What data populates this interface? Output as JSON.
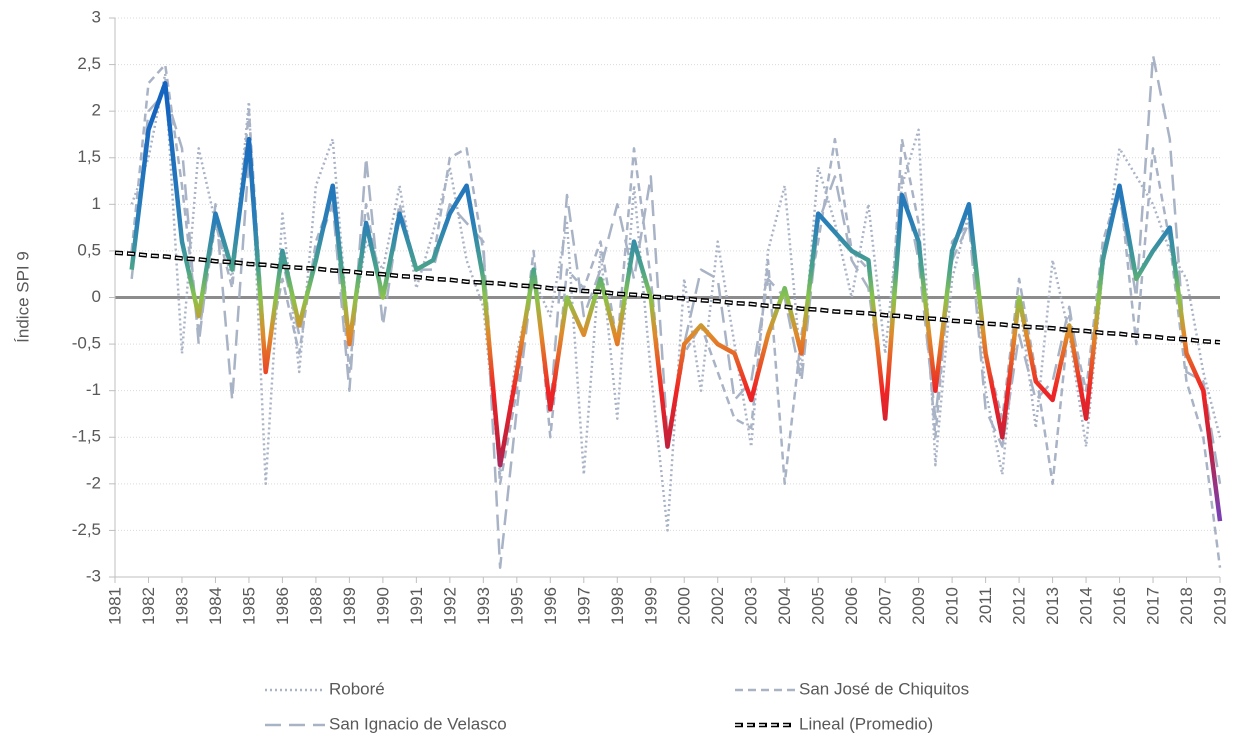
{
  "chart_data": {
    "type": "line",
    "y_label": "Índice SPI 9",
    "ylim": [
      -3,
      3
    ],
    "yticks": [
      -3,
      {
        "value": -2.5,
        "label": "-2,5"
      },
      -2,
      {
        "value": -1.5,
        "label": "-1,5"
      },
      -1,
      {
        "value": -0.5,
        "label": "-0,5"
      },
      0,
      {
        "value": 0.5,
        "label": "0,5"
      },
      1,
      {
        "value": 1.5,
        "label": "1,5"
      },
      2,
      {
        "value": 2.5,
        "label": "2,5"
      },
      3
    ],
    "grid": true,
    "categories": [
      "1981",
      null,
      "1982",
      null,
      "1983",
      null,
      "1984",
      null,
      "1985",
      null,
      "1986",
      null,
      "1988",
      null,
      "1989",
      null,
      "1990",
      null,
      "1991",
      null,
      "1992",
      null,
      "1993",
      null,
      "1995",
      null,
      "1996",
      null,
      "1997",
      null,
      "1998",
      null,
      "1999",
      null,
      "2000",
      null,
      "2002",
      null,
      "2003",
      null,
      "2004",
      null,
      "2005",
      null,
      "2006",
      null,
      "2007",
      null,
      "2009",
      null,
      "2010",
      null,
      "2011",
      null,
      "2012",
      null,
      "2013",
      null,
      "2014",
      null,
      "2016",
      null,
      "2017",
      null,
      "2018",
      null,
      "2019"
    ],
    "series": [
      {
        "name": "Roboré",
        "color": "#a9b3c6",
        "dash": "dotted",
        "values": [
          null,
          1.0,
          1.5,
          2.4,
          -0.6,
          1.6,
          0.8,
          0.2,
          2.1,
          -2.0,
          0.9,
          -0.8,
          1.2,
          1.7,
          -0.5,
          0.6,
          0.3,
          1.2,
          0.1,
          0.7,
          1.4,
          0.4,
          -0.1,
          -1.9,
          -0.6,
          0.2,
          -0.2,
          0.8,
          -1.9,
          0.5,
          -1.3,
          1.2,
          -0.8,
          -2.5,
          0.2,
          -1.0,
          0.6,
          -0.5,
          -1.6,
          0.5,
          1.2,
          -0.8,
          1.4,
          0.8,
          0.0,
          1.0,
          -0.6,
          1.2,
          1.8,
          -1.8,
          0.2,
          0.9,
          -1.0,
          -1.9,
          0.0,
          -1.4,
          0.4,
          -0.4,
          -1.6,
          0.3,
          1.6,
          1.3,
          1.0,
          0.5,
          0.2,
          -0.8,
          -1.5
        ]
      },
      {
        "name": "San José de Chiquitos",
        "color": "#a9b3c6",
        "dash": "dashed",
        "values": [
          null,
          0.5,
          2.3,
          2.5,
          1.2,
          -0.4,
          0.8,
          0.1,
          2.0,
          -0.7,
          0.2,
          -0.6,
          0.6,
          1.1,
          -0.8,
          1.0,
          0.0,
          1.0,
          0.3,
          0.4,
          1.5,
          1.6,
          0.5,
          -2.0,
          -1.0,
          0.5,
          -1.5,
          0.3,
          0.1,
          0.6,
          -0.5,
          1.6,
          0.2,
          -1.6,
          -0.6,
          -0.3,
          -0.8,
          -1.3,
          -1.4,
          0.4,
          -2.0,
          -0.4,
          0.6,
          1.7,
          0.5,
          0.3,
          -1.3,
          1.7,
          0.8,
          -1.5,
          0.6,
          0.8,
          -0.6,
          -1.3,
          0.2,
          -0.8,
          -2.0,
          -0.2,
          -1.0,
          0.6,
          1.2,
          -0.5,
          1.6,
          0.6,
          -0.9,
          -1.5,
          -2.9
        ]
      },
      {
        "name": "San Ignacio de Velasco",
        "color": "#a9b3c6",
        "dash": "longdash",
        "values": [
          null,
          0.2,
          2.0,
          2.2,
          1.6,
          -0.5,
          1.0,
          -1.1,
          1.5,
          -0.8,
          0.4,
          -0.4,
          0.5,
          1.0,
          -1.0,
          1.5,
          -0.3,
          0.9,
          0.3,
          0.3,
          1.0,
          0.8,
          0.6,
          -2.9,
          -1.2,
          0.3,
          -1.2,
          1.1,
          -0.2,
          0.3,
          1.0,
          0.2,
          1.3,
          -1.5,
          -0.5,
          0.3,
          0.2,
          -1.1,
          -0.9,
          0.2,
          0.0,
          -0.9,
          0.8,
          1.3,
          0.4,
          0.1,
          -1.2,
          1.3,
          0.4,
          -1.3,
          0.4,
          0.8,
          -1.2,
          -1.6,
          -0.4,
          -1.1,
          -0.9,
          -0.1,
          -1.2,
          0.5,
          1.1,
          0.0,
          2.6,
          1.7,
          -0.8,
          -0.9,
          -2.0
        ]
      },
      {
        "color_stops": [
          [
            2,
            "#1565c0"
          ],
          [
            0.8,
            "#2a7fb8"
          ],
          [
            0.3,
            "#4aa38a"
          ],
          [
            0,
            "#8bc34a"
          ],
          [
            -0.4,
            "#e08a2a"
          ],
          [
            -1,
            "#f02424"
          ],
          [
            -1.6,
            "#c0203c"
          ],
          [
            -2.3,
            "#7b3fb0"
          ]
        ],
        "dash": "solid",
        "values": [
          null,
          0.3,
          1.8,
          2.3,
          0.6,
          -0.2,
          0.9,
          0.3,
          1.7,
          -0.8,
          0.5,
          -0.3,
          0.4,
          1.2,
          -0.5,
          0.8,
          0.0,
          0.9,
          0.3,
          0.4,
          0.9,
          1.2,
          0.2,
          -1.8,
          -0.8,
          0.3,
          -1.2,
          0.0,
          -0.4,
          0.2,
          -0.5,
          0.6,
          0.0,
          -1.6,
          -0.5,
          -0.3,
          -0.5,
          -0.6,
          -1.1,
          -0.4,
          0.1,
          -0.6,
          0.9,
          0.7,
          0.5,
          0.4,
          -1.3,
          1.1,
          0.6,
          -1.0,
          0.5,
          1.0,
          -0.6,
          -1.5,
          0.0,
          -0.9,
          -1.1,
          -0.3,
          -1.3,
          0.4,
          1.2,
          0.2,
          0.5,
          0.75,
          -0.6,
          -1.0,
          -2.4
        ]
      },
      {
        "name": "Lineal (Promedio)",
        "color": "#000000",
        "dash": "trend",
        "values": [
          0.48,
          0.47,
          0.45,
          0.44,
          0.42,
          0.41,
          0.39,
          0.38,
          0.36,
          0.35,
          0.33,
          0.32,
          0.31,
          0.29,
          0.28,
          0.26,
          0.25,
          0.23,
          0.22,
          0.2,
          0.19,
          0.17,
          0.16,
          0.15,
          0.13,
          0.12,
          0.1,
          0.09,
          0.07,
          0.06,
          0.04,
          0.03,
          0.01,
          0.0,
          -0.01,
          -0.03,
          -0.04,
          -0.06,
          -0.07,
          -0.09,
          -0.1,
          -0.12,
          -0.13,
          -0.15,
          -0.16,
          -0.17,
          -0.19,
          -0.2,
          -0.22,
          -0.23,
          -0.25,
          -0.26,
          -0.28,
          -0.29,
          -0.31,
          -0.32,
          -0.33,
          -0.35,
          -0.36,
          -0.38,
          -0.39,
          -0.41,
          -0.42,
          -0.44,
          -0.45,
          -0.47,
          -0.48
        ]
      }
    ]
  }
}
